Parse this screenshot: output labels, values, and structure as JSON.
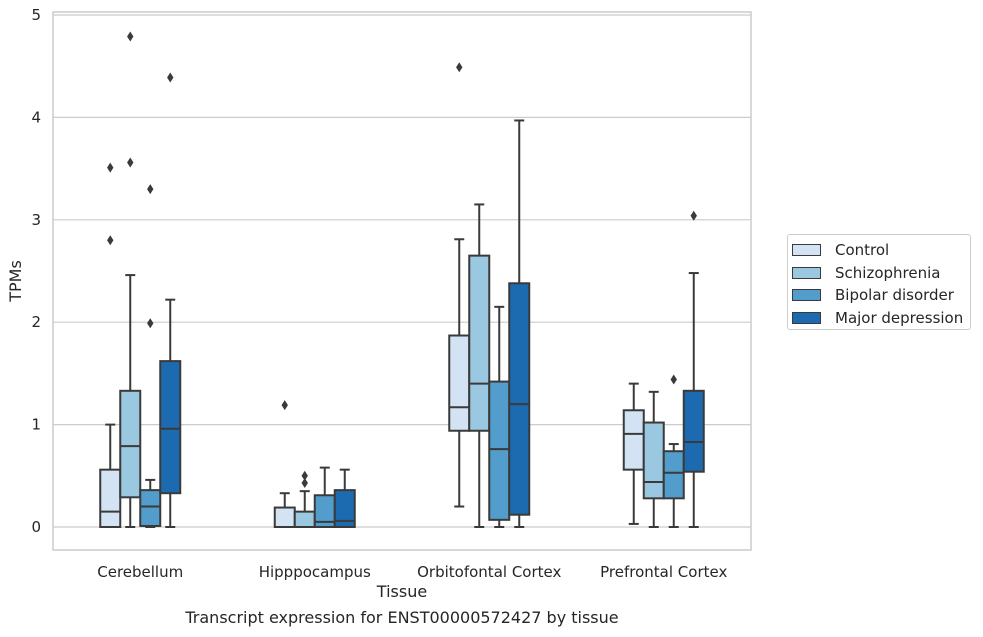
{
  "chart_data": {
    "type": "box",
    "title": "Transcript expression for ENST00000572427 by tissue",
    "xlabel": "Tissue",
    "ylabel": "TPMs",
    "ylim": [
      -0.22,
      5.05
    ],
    "yticks": [
      0,
      1,
      2,
      3,
      4,
      5
    ],
    "categories": [
      "Cerebellum",
      "Hipppocampus",
      "Orbitofontal Cortex",
      "Prefrontal Cortex"
    ],
    "grid": "horizontal",
    "legend_position": "right",
    "series": [
      {
        "name": "Control",
        "color": "#d3e3f3",
        "boxes": [
          {
            "min": 0,
            "q1": 0,
            "median": 0.15,
            "q3": 0.56,
            "max": 1.0,
            "outliers": [
              2.8,
              3.51
            ]
          },
          {
            "min": 0,
            "q1": 0,
            "median": 0,
            "q3": 0.19,
            "max": 0.33,
            "outliers": [
              1.19
            ]
          },
          {
            "min": 0.2,
            "q1": 0.94,
            "median": 1.17,
            "q3": 1.87,
            "max": 2.81,
            "outliers": [
              4.49
            ]
          },
          {
            "min": 0.03,
            "q1": 0.56,
            "median": 0.91,
            "q3": 1.14,
            "max": 1.4,
            "outliers": []
          }
        ]
      },
      {
        "name": "Schizophrenia",
        "color": "#9ac8e0",
        "boxes": [
          {
            "min": 0,
            "q1": 0.29,
            "median": 0.79,
            "q3": 1.33,
            "max": 2.46,
            "outliers": [
              3.56,
              4.79
            ]
          },
          {
            "min": 0,
            "q1": 0,
            "median": 0,
            "q3": 0.15,
            "max": 0.35,
            "outliers": [
              0.43,
              0.5
            ]
          },
          {
            "min": 0,
            "q1": 0.94,
            "median": 1.4,
            "q3": 2.65,
            "max": 3.15,
            "outliers": []
          },
          {
            "min": 0,
            "q1": 0.28,
            "median": 0.44,
            "q3": 1.02,
            "max": 1.32,
            "outliers": []
          }
        ]
      },
      {
        "name": "Bipolar disorder",
        "color": "#529dcc",
        "boxes": [
          {
            "min": 0,
            "q1": 0.01,
            "median": 0.2,
            "q3": 0.36,
            "max": 0.46,
            "outliers": [
              1.99,
              3.3
            ]
          },
          {
            "min": 0,
            "q1": 0,
            "median": 0.05,
            "q3": 0.31,
            "max": 0.58,
            "outliers": []
          },
          {
            "min": 0,
            "q1": 0.07,
            "median": 0.76,
            "q3": 1.42,
            "max": 2.15,
            "outliers": []
          },
          {
            "min": 0,
            "q1": 0.28,
            "median": 0.53,
            "q3": 0.74,
            "max": 0.81,
            "outliers": [
              1.44
            ]
          }
        ]
      },
      {
        "name": "Major depression",
        "color": "#1c6aaf",
        "boxes": [
          {
            "min": 0,
            "q1": 0.33,
            "median": 0.96,
            "q3": 1.62,
            "max": 2.22,
            "outliers": [
              4.39
            ]
          },
          {
            "min": 0,
            "q1": 0,
            "median": 0.06,
            "q3": 0.36,
            "max": 0.56,
            "outliers": []
          },
          {
            "min": 0,
            "q1": 0.12,
            "median": 1.2,
            "q3": 2.38,
            "max": 3.97,
            "outliers": []
          },
          {
            "min": 0,
            "q1": 0.54,
            "median": 0.83,
            "q3": 1.33,
            "max": 2.48,
            "outliers": [
              3.04
            ]
          }
        ]
      }
    ]
  }
}
